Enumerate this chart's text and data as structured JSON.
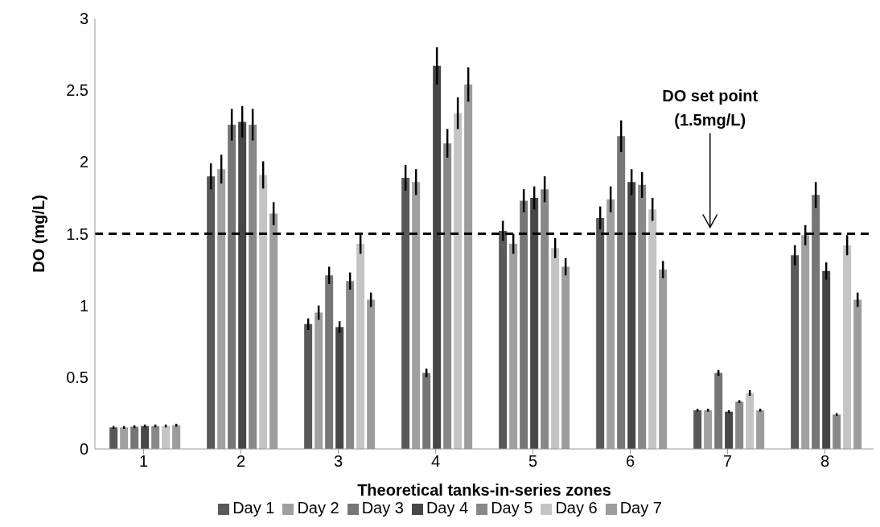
{
  "chart_data": {
    "type": "bar",
    "xlabel": "Theoretical tanks-in-series zones",
    "ylabel": "DO (mg/L)",
    "categories": [
      "1",
      "2",
      "3",
      "4",
      "5",
      "6",
      "7",
      "8"
    ],
    "ylim": [
      0,
      3
    ],
    "yticks": [
      0,
      0.5,
      1,
      1.5,
      2,
      2.5,
      3
    ],
    "grid": false,
    "legend": "bottom",
    "ref_lines": [
      {
        "axis": "y",
        "value": 1.5,
        "label": "DO set point\n(1.5mg/L)",
        "color": "#000000",
        "line_style": "dashed"
      }
    ],
    "series": [
      {
        "name": "Day 1",
        "color": "#595959",
        "values": [
          0.15,
          1.9,
          0.87,
          1.89,
          1.52,
          1.61,
          0.27,
          1.35
        ],
        "errors": [
          0.01,
          0.09,
          0.04,
          0.09,
          0.07,
          0.08,
          0.01,
          0.07
        ]
      },
      {
        "name": "Day 2",
        "color": "#a0a0a0",
        "values": [
          0.15,
          1.95,
          0.95,
          1.86,
          1.43,
          1.74,
          0.27,
          1.49
        ],
        "errors": [
          0.01,
          0.1,
          0.05,
          0.09,
          0.07,
          0.09,
          0.01,
          0.07
        ]
      },
      {
        "name": "Day 3",
        "color": "#767676",
        "values": [
          0.155,
          2.26,
          1.21,
          0.53,
          1.73,
          2.18,
          0.53,
          1.77
        ],
        "errors": [
          0.01,
          0.11,
          0.06,
          0.03,
          0.08,
          0.11,
          0.02,
          0.09
        ]
      },
      {
        "name": "Day 4",
        "color": "#474747",
        "values": [
          0.16,
          2.28,
          0.85,
          2.67,
          1.75,
          1.86,
          0.26,
          1.24
        ],
        "errors": [
          0.01,
          0.11,
          0.04,
          0.13,
          0.08,
          0.09,
          0.01,
          0.06
        ]
      },
      {
        "name": "Day 5",
        "color": "#888888",
        "values": [
          0.16,
          2.26,
          1.17,
          2.13,
          1.81,
          1.84,
          0.33,
          0.24
        ],
        "errors": [
          0.01,
          0.11,
          0.06,
          0.1,
          0.09,
          0.09,
          0.01,
          0.01
        ]
      },
      {
        "name": "Day 6",
        "color": "#c4c4c4",
        "values": [
          0.16,
          1.91,
          1.43,
          2.34,
          1.4,
          1.67,
          0.39,
          1.42
        ],
        "errors": [
          0.01,
          0.095,
          0.07,
          0.11,
          0.07,
          0.08,
          0.02,
          0.07
        ]
      },
      {
        "name": "Day 7",
        "color": "#9c9c9c",
        "values": [
          0.165,
          1.64,
          1.04,
          2.54,
          1.27,
          1.25,
          0.27,
          1.04
        ],
        "errors": [
          0.01,
          0.08,
          0.05,
          0.12,
          0.06,
          0.06,
          0.01,
          0.05
        ]
      }
    ]
  }
}
